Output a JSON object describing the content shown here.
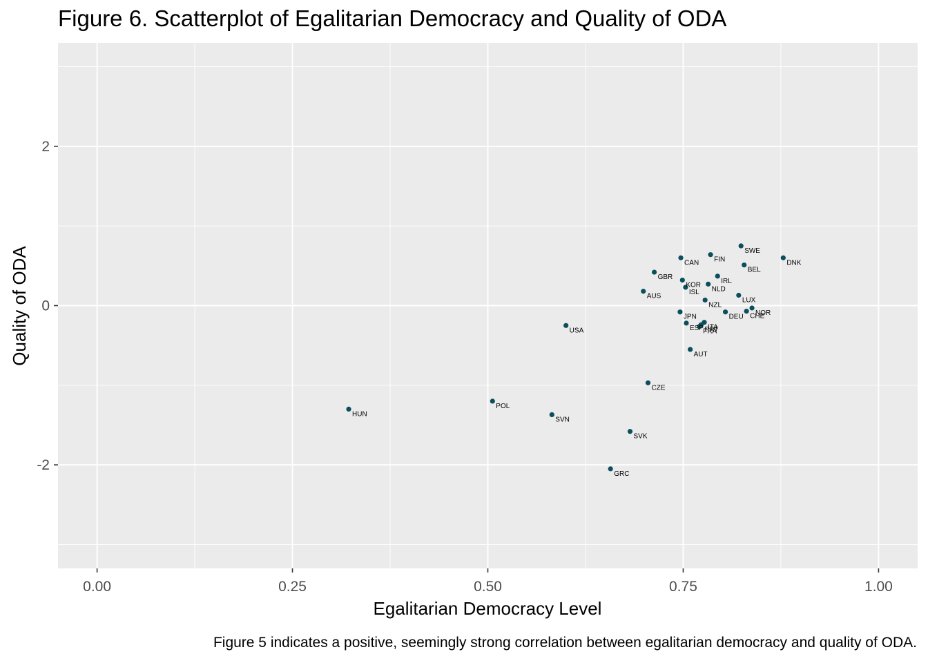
{
  "title": "Figure 6. Scatterplot of Egalitarian Democracy and Quality of ODA",
  "caption": "Figure 5 indicates a positive, seemingly strong correlation between egalitarian democracy and quality of ODA.",
  "colors": {
    "panel": "#ebebeb",
    "grid": "#ffffff",
    "point": "#0b4f5c",
    "text": "#000000",
    "tick_text": "#4d4d4d"
  },
  "chart_data": {
    "type": "scatter",
    "title": "Figure 6. Scatterplot of Egalitarian Democracy and Quality of ODA",
    "xlabel": "Egalitarian Democracy Level",
    "ylabel": "Quality of ODA",
    "xlim": [
      -0.05,
      1.05
    ],
    "ylim": [
      -3.3,
      3.3
    ],
    "xticks": [
      0.0,
      0.25,
      0.5,
      0.75,
      1.0
    ],
    "xtick_labels": [
      "0.00",
      "0.25",
      "0.50",
      "0.75",
      "1.00"
    ],
    "yticks": [
      -2,
      0,
      2
    ],
    "ytick_labels": [
      "-2",
      "0",
      "2"
    ],
    "grid": true,
    "points": [
      {
        "label": "HUN",
        "x": 0.322,
        "y": -1.3
      },
      {
        "label": "POL",
        "x": 0.506,
        "y": -1.2
      },
      {
        "label": "SVN",
        "x": 0.582,
        "y": -1.37
      },
      {
        "label": "USA",
        "x": 0.6,
        "y": -0.25
      },
      {
        "label": "GRC",
        "x": 0.657,
        "y": -2.05
      },
      {
        "label": "SVK",
        "x": 0.682,
        "y": -1.58
      },
      {
        "label": "AUS",
        "x": 0.699,
        "y": 0.18
      },
      {
        "label": "CZE",
        "x": 0.705,
        "y": -0.97
      },
      {
        "label": "GBR",
        "x": 0.713,
        "y": 0.42
      },
      {
        "label": "JPN",
        "x": 0.746,
        "y": -0.08
      },
      {
        "label": "CAN",
        "x": 0.747,
        "y": 0.6
      },
      {
        "label": "KOR",
        "x": 0.749,
        "y": 0.32
      },
      {
        "label": "ISL",
        "x": 0.753,
        "y": 0.23
      },
      {
        "label": "ESP",
        "x": 0.754,
        "y": -0.22
      },
      {
        "label": "AUT",
        "x": 0.759,
        "y": -0.55
      },
      {
        "label": "FRA",
        "x": 0.771,
        "y": -0.26
      },
      {
        "label": "PRT",
        "x": 0.773,
        "y": -0.24
      },
      {
        "label": "ITA",
        "x": 0.777,
        "y": -0.21
      },
      {
        "label": "NZL",
        "x": 0.778,
        "y": 0.07
      },
      {
        "label": "NLD",
        "x": 0.782,
        "y": 0.27
      },
      {
        "label": "FIN",
        "x": 0.785,
        "y": 0.64
      },
      {
        "label": "IRL",
        "x": 0.794,
        "y": 0.37
      },
      {
        "label": "DEU",
        "x": 0.804,
        "y": -0.08
      },
      {
        "label": "LUX",
        "x": 0.821,
        "y": 0.13
      },
      {
        "label": "SWE",
        "x": 0.824,
        "y": 0.75
      },
      {
        "label": "BEL",
        "x": 0.828,
        "y": 0.51
      },
      {
        "label": "CHE",
        "x": 0.831,
        "y": -0.07
      },
      {
        "label": "NOR",
        "x": 0.838,
        "y": -0.03
      },
      {
        "label": "DNK",
        "x": 0.878,
        "y": 0.6
      }
    ]
  }
}
